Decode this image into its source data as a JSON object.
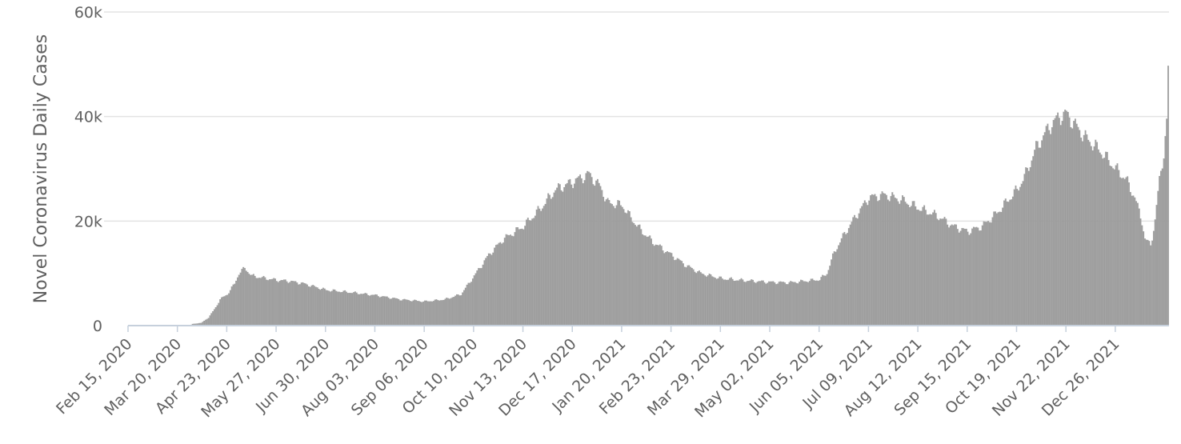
{
  "chart_data": {
    "type": "bar",
    "title": "",
    "xlabel": "",
    "ylabel": "Novel Coronavirus Daily Cases",
    "ylim": [
      0,
      60000
    ],
    "yticks": [
      0,
      20000,
      40000,
      60000
    ],
    "ytick_labels": [
      "0",
      "20k",
      "40k",
      "60k"
    ],
    "grid": true,
    "legend": "none",
    "bar_color": "#9e9e9e",
    "x_start": "2020-02-15",
    "x_end": "2022-01-18",
    "x_tick_labels": [
      "Feb 15, 2020",
      "Mar 20, 2020",
      "Apr 23, 2020",
      "May 27, 2020",
      "Jun 30, 2020",
      "Aug 03, 2020",
      "Sep 06, 2020",
      "Oct 10, 2020",
      "Nov 13, 2020",
      "Dec 17, 2020",
      "Jan 20, 2021",
      "Feb 23, 2021",
      "Mar 29, 2021",
      "May 02, 2021",
      "Jun 05, 2021",
      "Jul 09, 2021",
      "Aug 12, 2021",
      "Sep 15, 2021",
      "Oct 19, 2021",
      "Nov 22, 2021",
      "Dec 26, 2021"
    ],
    "series": [
      {
        "values_by_date": [
          [
            "2020-02-15",
            0
          ],
          [
            "2020-03-20",
            0
          ],
          [
            "2020-03-28",
            0
          ],
          [
            "2020-03-30",
            300
          ],
          [
            "2020-04-05",
            500
          ],
          [
            "2020-04-10",
            1500
          ],
          [
            "2020-04-15",
            3500
          ],
          [
            "2020-04-18",
            5000
          ],
          [
            "2020-04-23",
            6000
          ],
          [
            "2020-04-28",
            8000
          ],
          [
            "2020-05-01",
            10000
          ],
          [
            "2020-05-05",
            11000
          ],
          [
            "2020-05-10",
            9500
          ],
          [
            "2020-05-20",
            9000
          ],
          [
            "2020-05-27",
            8700
          ],
          [
            "2020-06-05",
            8500
          ],
          [
            "2020-06-15",
            8000
          ],
          [
            "2020-06-30",
            6800
          ],
          [
            "2020-07-15",
            6400
          ],
          [
            "2020-08-03",
            5800
          ],
          [
            "2020-08-20",
            5000
          ],
          [
            "2020-09-06",
            4600
          ],
          [
            "2020-09-20",
            5000
          ],
          [
            "2020-10-01",
            6000
          ],
          [
            "2020-10-10",
            9500
          ],
          [
            "2020-10-20",
            13500
          ],
          [
            "2020-10-30",
            16500
          ],
          [
            "2020-11-13",
            19000
          ],
          [
            "2020-11-25",
            22500
          ],
          [
            "2020-12-05",
            26000
          ],
          [
            "2020-12-17",
            27500
          ],
          [
            "2020-12-28",
            29000
          ],
          [
            "2021-01-05",
            26500
          ],
          [
            "2021-01-10",
            23500
          ],
          [
            "2021-01-20",
            23000
          ],
          [
            "2021-01-25",
            21000
          ],
          [
            "2021-02-01",
            18500
          ],
          [
            "2021-02-10",
            16000
          ],
          [
            "2021-02-23",
            13500
          ],
          [
            "2021-03-05",
            11500
          ],
          [
            "2021-03-15",
            10000
          ],
          [
            "2021-03-29",
            9000
          ],
          [
            "2021-04-15",
            8600
          ],
          [
            "2021-05-02",
            8300
          ],
          [
            "2021-05-15",
            8200
          ],
          [
            "2021-06-05",
            8800
          ],
          [
            "2021-06-10",
            10000
          ],
          [
            "2021-06-15",
            14000
          ],
          [
            "2021-06-22",
            17500
          ],
          [
            "2021-06-30",
            21000
          ],
          [
            "2021-07-09",
            24500
          ],
          [
            "2021-07-20",
            25000
          ],
          [
            "2021-08-01",
            24000
          ],
          [
            "2021-08-12",
            22500
          ],
          [
            "2021-08-25",
            21000
          ],
          [
            "2021-09-05",
            19000
          ],
          [
            "2021-09-15",
            18000
          ],
          [
            "2021-09-25",
            19000
          ],
          [
            "2021-10-05",
            21500
          ],
          [
            "2021-10-19",
            26000
          ],
          [
            "2021-10-25",
            29000
          ],
          [
            "2021-11-01",
            34000
          ],
          [
            "2021-11-10",
            38000
          ],
          [
            "2021-11-17",
            40000
          ],
          [
            "2021-11-22",
            40500
          ],
          [
            "2021-11-29",
            38000
          ],
          [
            "2021-12-05",
            36000
          ],
          [
            "2021-12-15",
            33500
          ],
          [
            "2021-12-26",
            30000
          ],
          [
            "2022-01-02",
            28000
          ],
          [
            "2022-01-08",
            24500
          ],
          [
            "2022-01-13",
            20000
          ],
          [
            "2022-01-15",
            16500
          ],
          [
            "2022-01-19",
            15500
          ],
          [
            "2022-01-22",
            20000
          ],
          [
            "2022-01-25",
            28000
          ],
          [
            "2022-01-28",
            33000
          ],
          [
            "2022-01-30",
            38500
          ],
          [
            "2022-01-31",
            49000
          ]
        ]
      }
    ]
  }
}
